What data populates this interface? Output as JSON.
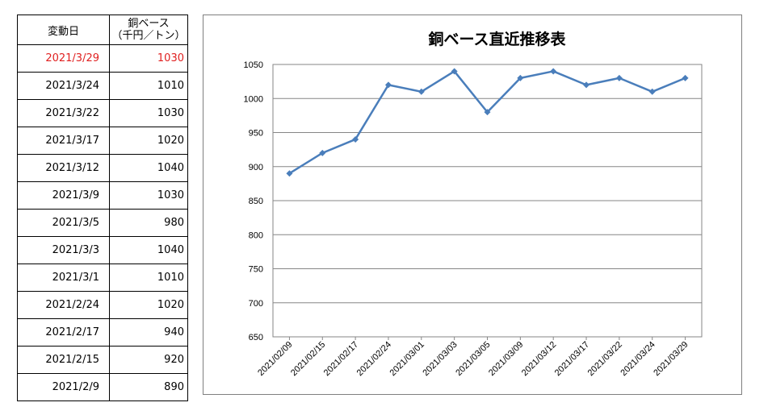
{
  "table": {
    "header": {
      "date": "変動日",
      "value_line1": "銅ベース",
      "value_line2": "（千円／トン）"
    },
    "rows": [
      {
        "date": "2021/3/29",
        "value": "1030"
      },
      {
        "date": "2021/3/24",
        "value": "1010"
      },
      {
        "date": "2021/3/22",
        "value": "1030"
      },
      {
        "date": "2021/3/17",
        "value": "1020"
      },
      {
        "date": "2021/3/12",
        "value": "1040"
      },
      {
        "date": "2021/3/9",
        "value": "1030"
      },
      {
        "date": "2021/3/5",
        "value": "980"
      },
      {
        "date": "2021/3/3",
        "value": "1040"
      },
      {
        "date": "2021/3/1",
        "value": "1010"
      },
      {
        "date": "2021/2/24",
        "value": "1020"
      },
      {
        "date": "2021/2/17",
        "value": "940"
      },
      {
        "date": "2021/2/15",
        "value": "920"
      },
      {
        "date": "2021/2/9",
        "value": "890"
      }
    ],
    "latest_color": "#e02020"
  },
  "chart_data": {
    "type": "line",
    "title": "銅ベース直近推移表",
    "xlabel": "",
    "ylabel": "",
    "categories": [
      "2021/02/09",
      "2021/02/15",
      "2021/02/17",
      "2021/02/24",
      "2021/03/01",
      "2021/03/03",
      "2021/03/05",
      "2021/03/09",
      "2021/03/12",
      "2021/03/17",
      "2021/03/22",
      "2021/03/24",
      "2021/03/29"
    ],
    "series": [
      {
        "values": [
          890,
          920,
          940,
          1020,
          1010,
          1040,
          980,
          1030,
          1040,
          1020,
          1030,
          1010,
          1030
        ],
        "color": "#4a7ebb"
      }
    ],
    "ylim": [
      650,
      1050
    ],
    "yticks": [
      650,
      700,
      750,
      800,
      850,
      900,
      950,
      1000,
      1050
    ],
    "grid": "horizontal",
    "legend": "none",
    "marker": "diamond"
  }
}
